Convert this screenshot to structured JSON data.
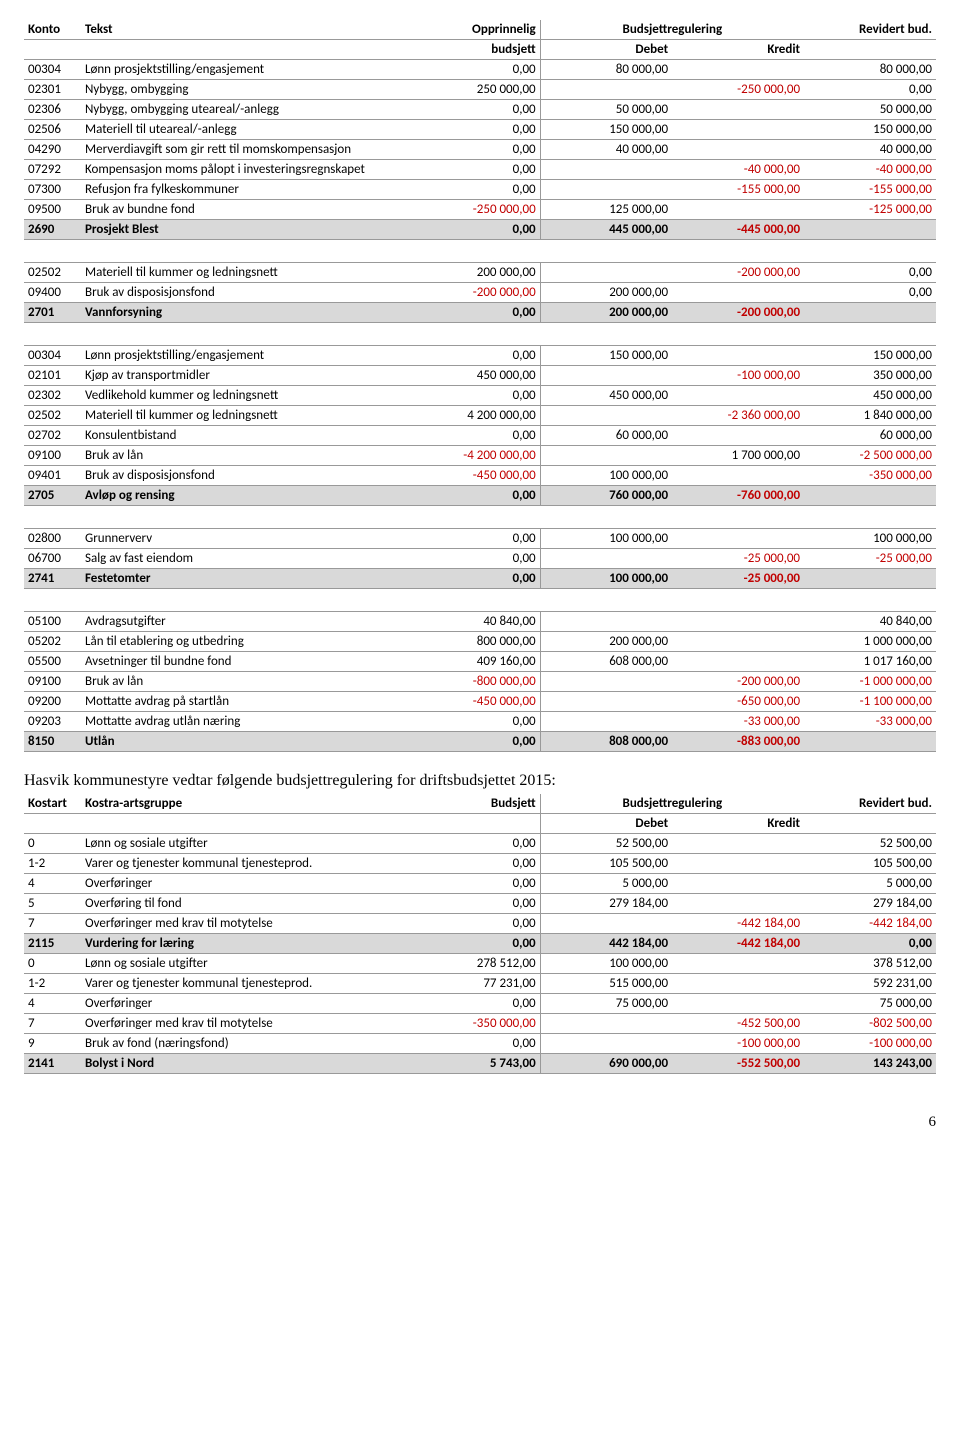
{
  "colors": {
    "pos_text": "#000000",
    "neg_text": "#c00000",
    "sum_bg": "#d9d9d9",
    "border": "#999999"
  },
  "table1": {
    "headers": {
      "konto": "Konto",
      "tekst": "Tekst",
      "opprinnelig": "Opprinnelig",
      "opprinnelig2": "budsjett",
      "budsjettreg": "Budsjettregulering",
      "debet": "Debet",
      "kredit": "Kredit",
      "revidert": "Revidert bud."
    },
    "rows": [
      {
        "k": "00304",
        "t": "Lønn prosjektstilling/engasjement",
        "c": [
          "0,00",
          "80 000,00",
          "",
          "80 000,00"
        ]
      },
      {
        "k": "02301",
        "t": "Nybygg, ombygging",
        "c": [
          "250 000,00",
          "",
          "-250 000,00",
          "0,00"
        ]
      },
      {
        "k": "02306",
        "t": "Nybygg, ombygging uteareal/-anlegg",
        "c": [
          "0,00",
          "50 000,00",
          "",
          "50 000,00"
        ]
      },
      {
        "k": "02506",
        "t": "Materiell til uteareal/-anlegg",
        "c": [
          "0,00",
          "150 000,00",
          "",
          "150 000,00"
        ]
      },
      {
        "k": "04290",
        "t": "Merverdiavgift som gir rett til momskompensasjon",
        "c": [
          "0,00",
          "40 000,00",
          "",
          "40 000,00"
        ]
      },
      {
        "k": "07292",
        "t": "Kompensasjon moms pålopt i investeringsregnskapet",
        "c": [
          "0,00",
          "",
          "-40 000,00",
          "-40 000,00"
        ]
      },
      {
        "k": "07300",
        "t": "Refusjon fra fylkeskommuner",
        "c": [
          "0,00",
          "",
          "-155 000,00",
          "-155 000,00"
        ]
      },
      {
        "k": "09500",
        "t": "Bruk av bundne fond",
        "c": [
          "-250 000,00",
          "125 000,00",
          "",
          "-125 000,00"
        ]
      },
      {
        "sum": true,
        "k": "2690",
        "t": "Prosjekt Blest",
        "c": [
          "0,00",
          "445 000,00",
          "-445 000,00",
          ""
        ]
      },
      {
        "spacer": true
      },
      {
        "k": "02502",
        "t": "Materiell til kummer og ledningsnett",
        "c": [
          "200 000,00",
          "",
          "-200 000,00",
          "0,00"
        ]
      },
      {
        "k": "09400",
        "t": "Bruk av disposisjonsfond",
        "c": [
          "-200 000,00",
          "200 000,00",
          "",
          "0,00"
        ]
      },
      {
        "sum": true,
        "k": "2701",
        "t": "Vannforsyning",
        "c": [
          "0,00",
          "200 000,00",
          "-200 000,00",
          ""
        ]
      },
      {
        "spacer": true
      },
      {
        "k": "00304",
        "t": "Lønn prosjektstilling/engasjement",
        "c": [
          "0,00",
          "150 000,00",
          "",
          "150 000,00"
        ]
      },
      {
        "k": "02101",
        "t": "Kjøp av transportmidler",
        "c": [
          "450 000,00",
          "",
          "-100 000,00",
          "350 000,00"
        ]
      },
      {
        "k": "02302",
        "t": "Vedlikehold kummer og ledningsnett",
        "c": [
          "0,00",
          "450 000,00",
          "",
          "450 000,00"
        ]
      },
      {
        "k": "02502",
        "t": "Materiell til kummer og ledningsnett",
        "c": [
          "4 200 000,00",
          "",
          "-2 360 000,00",
          "1 840 000,00"
        ]
      },
      {
        "k": "02702",
        "t": "Konsulentbistand",
        "c": [
          "0,00",
          "60 000,00",
          "",
          "60 000,00"
        ]
      },
      {
        "k": "09100",
        "t": "Bruk av lån",
        "c": [
          "-4 200 000,00",
          "",
          "1 700 000,00",
          "-2 500 000,00"
        ]
      },
      {
        "k": "09401",
        "t": "Bruk av disposisjonsfond",
        "c": [
          "-450 000,00",
          "100 000,00",
          "",
          "-350 000,00"
        ]
      },
      {
        "sum": true,
        "k": "2705",
        "t": "Avløp og rensing",
        "c": [
          "0,00",
          "760 000,00",
          "-760 000,00",
          ""
        ]
      },
      {
        "spacer": true
      },
      {
        "k": "02800",
        "t": "Grunnerverv",
        "c": [
          "0,00",
          "100 000,00",
          "",
          "100 000,00"
        ]
      },
      {
        "k": "06700",
        "t": "Salg av fast eiendom",
        "c": [
          "0,00",
          "",
          "-25 000,00",
          "-25 000,00"
        ]
      },
      {
        "sum": true,
        "k": "2741",
        "t": "Festetomter",
        "c": [
          "0,00",
          "100 000,00",
          "-25 000,00",
          ""
        ]
      },
      {
        "spacer": true
      },
      {
        "k": "05100",
        "t": "Avdragsutgifter",
        "c": [
          "40 840,00",
          "",
          "",
          "40 840,00"
        ]
      },
      {
        "k": "05202",
        "t": "Lån til etablering og utbedring",
        "c": [
          "800 000,00",
          "200 000,00",
          "",
          "1 000 000,00"
        ]
      },
      {
        "k": "05500",
        "t": "Avsetninger til bundne fond",
        "c": [
          "409 160,00",
          "608 000,00",
          "",
          "1 017 160,00"
        ]
      },
      {
        "k": "09100",
        "t": "Bruk av lån",
        "c": [
          "-800 000,00",
          "",
          "-200 000,00",
          "-1 000 000,00"
        ]
      },
      {
        "k": "09200",
        "t": "Mottatte avdrag på startlån",
        "c": [
          "-450 000,00",
          "",
          "-650 000,00",
          "-1 100 000,00"
        ]
      },
      {
        "k": "09203",
        "t": "Mottatte avdrag utlån næring",
        "c": [
          "0,00",
          "",
          "-33 000,00",
          "-33 000,00"
        ]
      },
      {
        "sum": true,
        "k": "8150",
        "t": "Utlån",
        "c": [
          "0,00",
          "808 000,00",
          "-883 000,00",
          ""
        ]
      }
    ]
  },
  "intro_text": "Hasvik kommunestyre vedtar følgende budsjettregulering for driftsbudsjettet 2015:",
  "table2": {
    "headers": {
      "kostart": "Kostart",
      "gruppe": "Kostra-artsgruppe",
      "budsjett": "Budsjett",
      "budsjettreg": "Budsjettregulering",
      "debet": "Debet",
      "kredit": "Kredit",
      "revidert": "Revidert bud."
    },
    "rows": [
      {
        "k": "0",
        "t": "Lønn og sosiale utgifter",
        "c": [
          "0,00",
          "52 500,00",
          "",
          "52 500,00"
        ]
      },
      {
        "k": "1-2",
        "t": "Varer og tjenester kommunal tjenesteprod.",
        "c": [
          "0,00",
          "105 500,00",
          "",
          "105 500,00"
        ]
      },
      {
        "k": "4",
        "t": "Overføringer",
        "c": [
          "0,00",
          "5 000,00",
          "",
          "5 000,00"
        ]
      },
      {
        "k": "5",
        "t": "Overføring til fond",
        "c": [
          "0,00",
          "279 184,00",
          "",
          "279 184,00"
        ]
      },
      {
        "k": "7",
        "t": "Overføringer med krav til motytelse",
        "c": [
          "0,00",
          "",
          "-442 184,00",
          "-442 184,00"
        ]
      },
      {
        "sum": true,
        "k": "2115",
        "t": "Vurdering for læring",
        "c": [
          "0,00",
          "442 184,00",
          "-442 184,00",
          "0,00"
        ]
      },
      {
        "k": "0",
        "t": "Lønn og sosiale utgifter",
        "c": [
          "278 512,00",
          "100 000,00",
          "",
          "378 512,00"
        ]
      },
      {
        "k": "1-2",
        "t": "Varer og tjenester kommunal tjenesteprod.",
        "c": [
          "77 231,00",
          "515 000,00",
          "",
          "592 231,00"
        ]
      },
      {
        "k": "4",
        "t": "Overføringer",
        "c": [
          "0,00",
          "75 000,00",
          "",
          "75 000,00"
        ]
      },
      {
        "k": "7",
        "t": "Overføringer med krav til motytelse",
        "c": [
          "-350 000,00",
          "",
          "-452 500,00",
          "-802 500,00"
        ]
      },
      {
        "k": "9",
        "t": "Bruk av fond (næringsfond)",
        "c": [
          "0,00",
          "",
          "-100 000,00",
          "-100 000,00"
        ]
      },
      {
        "sum": true,
        "k": "2141",
        "t": "Bolyst i Nord",
        "c": [
          "5 743,00",
          "690 000,00",
          "-552 500,00",
          "143 243,00"
        ]
      }
    ]
  },
  "page_number": "6"
}
